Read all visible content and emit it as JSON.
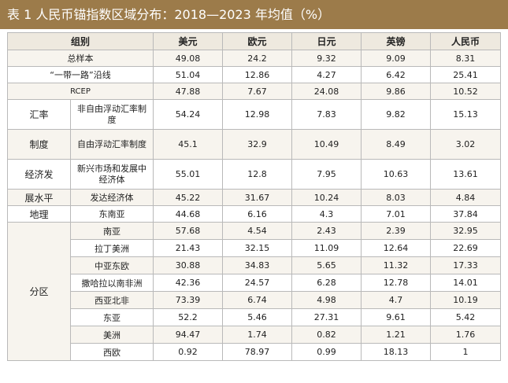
{
  "title": "表 1  人民币锚指数区域分布：2018—2023 年均值（%）",
  "header": {
    "group": "组别",
    "cols": [
      "美元",
      "欧元",
      "日元",
      "英镑",
      "人民币"
    ]
  },
  "rows": [
    {
      "label": "总样本",
      "values": [
        "49.08",
        "24.2",
        "9.32",
        "9.09",
        "8.31"
      ]
    },
    {
      "label": "“一带一路”沿线",
      "values": [
        "51.04",
        "12.86",
        "4.27",
        "6.42",
        "25.41"
      ]
    },
    {
      "label": "RCEP",
      "values": [
        "47.88",
        "7.67",
        "24.08",
        "9.86",
        "10.52"
      ]
    }
  ],
  "regime": {
    "group_top": "汇率",
    "group_bottom": "制度",
    "rows": [
      {
        "label": "非自由浮动汇率制度",
        "values": [
          "54.24",
          "12.98",
          "7.83",
          "9.82",
          "15.13"
        ]
      },
      {
        "label": "自由浮动汇率制度",
        "values": [
          "45.1",
          "32.9",
          "10.49",
          "8.49",
          "3.02"
        ]
      }
    ]
  },
  "development": {
    "group_top": "经济发",
    "group_bottom": "展水平",
    "rows": [
      {
        "label": "新兴市场和发展中经济体",
        "values": [
          "55.01",
          "12.8",
          "7.95",
          "10.63",
          "13.61"
        ]
      },
      {
        "label": "发达经济体",
        "values": [
          "45.22",
          "31.67",
          "10.24",
          "8.03",
          "4.84"
        ]
      }
    ]
  },
  "region": {
    "group_top": "地理",
    "group_bottom": "分区",
    "rows": [
      {
        "label": "东南亚",
        "values": [
          "44.68",
          "6.16",
          "4.3",
          "7.01",
          "37.84"
        ]
      },
      {
        "label": "南亚",
        "values": [
          "57.68",
          "4.54",
          "2.43",
          "2.39",
          "32.95"
        ]
      },
      {
        "label": "拉丁美洲",
        "values": [
          "21.43",
          "32.15",
          "11.09",
          "12.64",
          "22.69"
        ]
      },
      {
        "label": "中亚东欧",
        "values": [
          "30.88",
          "34.83",
          "5.65",
          "11.32",
          "17.33"
        ]
      },
      {
        "label": "撒哈拉以南非洲",
        "values": [
          "42.36",
          "24.57",
          "6.28",
          "12.78",
          "14.01"
        ]
      },
      {
        "label": "西亚北非",
        "values": [
          "73.39",
          "6.74",
          "4.98",
          "4.7",
          "10.19"
        ]
      },
      {
        "label": "东亚",
        "values": [
          "52.2",
          "5.46",
          "27.31",
          "9.61",
          "5.42"
        ]
      },
      {
        "label": "美洲",
        "values": [
          "94.47",
          "1.74",
          "0.82",
          "1.21",
          "1.76"
        ]
      },
      {
        "label": "西欧",
        "values": [
          "0.92",
          "78.97",
          "0.99",
          "18.13",
          "1"
        ]
      }
    ]
  }
}
